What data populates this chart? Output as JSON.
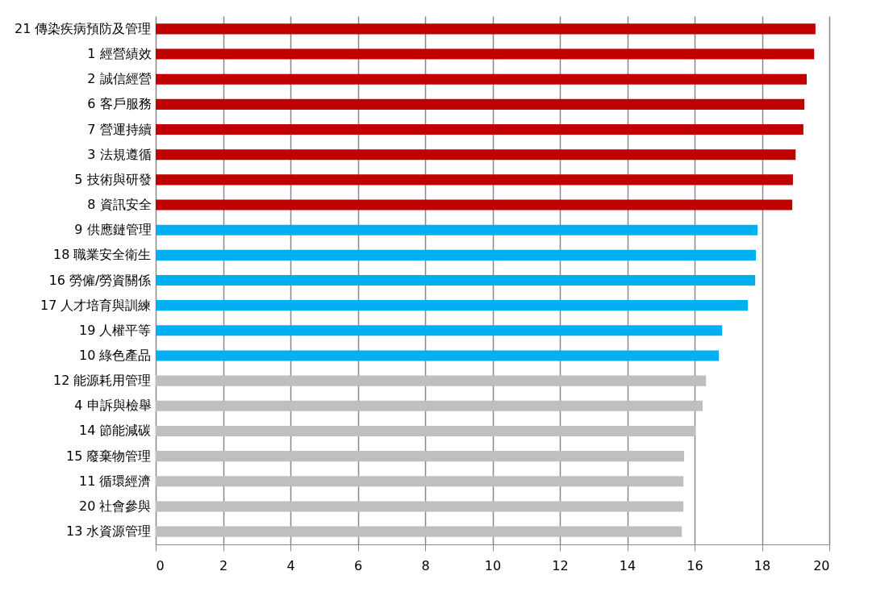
{
  "chart_data": {
    "type": "bar",
    "orientation": "horizontal",
    "categories": [
      "21  傳染疾病預防及管理",
      "1  經營績效",
      "2  誠信經營",
      "6  客戶服務",
      "7  營運持續",
      "3  法規遵循",
      "5  技術與研發",
      "8  資訊安全",
      "9  供應鏈管理",
      "18  職業安全衛生",
      "16  勞僱/勞資關係",
      "17  人才培育與訓練",
      "19  人權平等",
      "10  綠色產品",
      "12  能源耗用管理",
      "4  申訴與檢舉",
      "14  節能減碳",
      "15  廢棄物管理",
      "11  循環經濟",
      "20  社會參與",
      "13  水資源管理"
    ],
    "values": [
      19.59,
      19.55,
      19.33,
      19.26,
      19.23,
      19.0,
      18.92,
      18.9,
      17.87,
      17.82,
      17.8,
      17.58,
      16.82,
      16.72,
      16.34,
      16.24,
      16.03,
      15.69,
      15.67,
      15.67,
      15.62
    ],
    "colors": [
      "#c00000",
      "#c00000",
      "#c00000",
      "#c00000",
      "#c00000",
      "#c00000",
      "#c00000",
      "#c00000",
      "#00b0f0",
      "#00b0f0",
      "#00b0f0",
      "#00b0f0",
      "#00b0f0",
      "#00b0f0",
      "#bfbfbf",
      "#bfbfbf",
      "#bfbfbf",
      "#bfbfbf",
      "#bfbfbf",
      "#bfbfbf",
      "#bfbfbf"
    ],
    "xlim": [
      0,
      20
    ],
    "xticks": [
      0,
      2,
      4,
      6,
      8,
      10,
      12,
      14,
      16,
      18,
      20
    ],
    "grid": "x"
  }
}
